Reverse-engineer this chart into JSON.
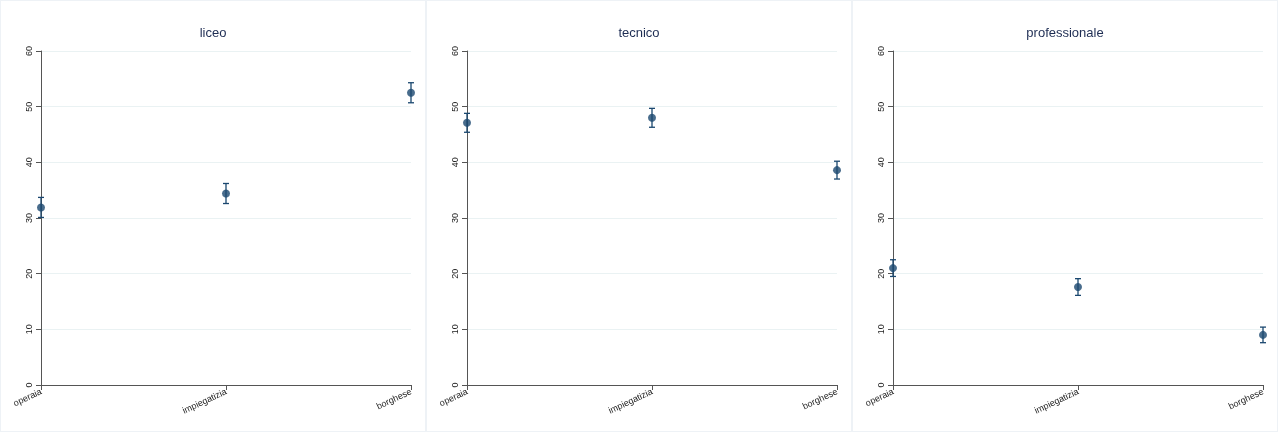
{
  "chart_data": [
    {
      "type": "scatter",
      "title": "liceo",
      "categories": [
        "operaia",
        "impiegatizia",
        "borghese"
      ],
      "values": [
        31.9,
        34.4,
        52.5
      ],
      "errors": [
        1.8,
        1.8,
        1.8
      ],
      "color": "#1a476f",
      "ylim": [
        0,
        60
      ],
      "yticks": [
        0,
        10,
        20,
        30,
        40,
        50,
        60
      ],
      "grid": "y",
      "marker": "circle"
    },
    {
      "type": "scatter",
      "title": "tecnico",
      "categories": [
        "operaia",
        "impiegatizia",
        "borghese"
      ],
      "values": [
        47.1,
        48.0,
        38.6
      ],
      "errors": [
        1.7,
        1.7,
        1.6
      ],
      "color": "#1a476f",
      "ylim": [
        0,
        60
      ],
      "yticks": [
        0,
        10,
        20,
        30,
        40,
        50,
        60
      ],
      "grid": "y",
      "marker": "circle"
    },
    {
      "type": "scatter",
      "title": "professionale",
      "categories": [
        "operaia",
        "impiegatizia",
        "borghese"
      ],
      "values": [
        21.0,
        17.6,
        9.0
      ],
      "errors": [
        1.5,
        1.5,
        1.4
      ],
      "color": "#1a476f",
      "ylim": [
        0,
        60
      ],
      "yticks": [
        0,
        10,
        20,
        30,
        40,
        50,
        60
      ],
      "grid": "y",
      "marker": "circle"
    }
  ]
}
